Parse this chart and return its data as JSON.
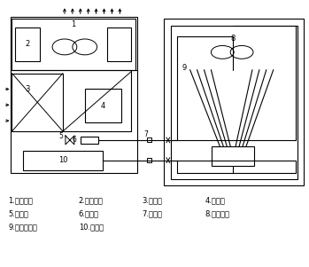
{
  "bg_color": "#ffffff",
  "lc": "#000000",
  "lw": 0.8,
  "legend_lines": [
    [
      "1.室内风机",
      "2.电加热器",
      "3.蒸发器",
      "4.加湿器"
    ],
    [
      "5.膨胀阀",
      "6.过滤器",
      "7.连接阀",
      "8.室外风机"
    ],
    [
      "9.室外冷凝器",
      "10.压缩机"
    ]
  ]
}
